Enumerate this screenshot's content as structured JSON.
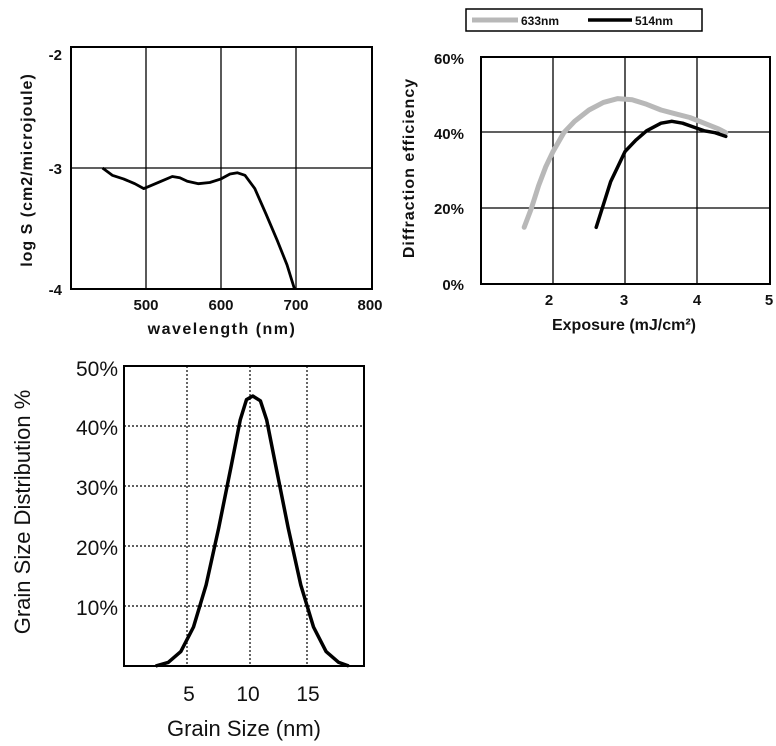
{
  "colors": {
    "series_633": "#b8b8b8",
    "series_514": "#000000",
    "axis": "#000000"
  },
  "chart_data": [
    {
      "type": "line",
      "xlabel": "wavelength (nm)",
      "ylabel": "log S (cm2/microjoule)",
      "xlim": [
        400,
        800
      ],
      "ylim": [
        -4,
        -2
      ],
      "x_ticks": [
        "500",
        "600",
        "700",
        "800"
      ],
      "y_ticks": [
        "-4",
        "-3",
        "-2"
      ],
      "grid": true,
      "series": [
        {
          "points": [
            [
              442,
              -3.0
            ],
            [
              455,
              -3.06
            ],
            [
              470,
              -3.09
            ],
            [
              485,
              -3.13
            ],
            [
              497,
              -3.17
            ],
            [
              505,
              -3.15
            ],
            [
              520,
              -3.11
            ],
            [
              535,
              -3.07
            ],
            [
              545,
              -3.08
            ],
            [
              555,
              -3.11
            ],
            [
              570,
              -3.13
            ],
            [
              585,
              -3.12
            ],
            [
              600,
              -3.09
            ],
            [
              612,
              -3.05
            ],
            [
              622,
              -3.04
            ],
            [
              632,
              -3.06
            ],
            [
              645,
              -3.17
            ],
            [
              660,
              -3.38
            ],
            [
              675,
              -3.6
            ],
            [
              688,
              -3.8
            ],
            [
              698,
              -4.0
            ]
          ]
        }
      ]
    },
    {
      "type": "line",
      "xlabel": "Exposure (mJ/cm²)",
      "ylabel": "Diffraction efficiency",
      "xlim": [
        1,
        5
      ],
      "ylim": [
        0,
        60
      ],
      "x_ticks": [
        "2",
        "3",
        "4",
        "5"
      ],
      "y_ticks": [
        "0%",
        "20%",
        "40%",
        "60%"
      ],
      "grid": true,
      "legend": "top",
      "series": [
        {
          "name": "633nm",
          "color": "#b8b8b8",
          "points": [
            [
              1.6,
              15
            ],
            [
              1.7,
              20
            ],
            [
              1.8,
              26
            ],
            [
              1.9,
              31
            ],
            [
              2.0,
              35
            ],
            [
              2.15,
              40
            ],
            [
              2.3,
              43
            ],
            [
              2.5,
              46
            ],
            [
              2.7,
              48
            ],
            [
              2.9,
              49
            ],
            [
              3.1,
              48.7
            ],
            [
              3.3,
              47.5
            ],
            [
              3.5,
              46
            ],
            [
              3.7,
              45
            ],
            [
              3.9,
              44
            ],
            [
              4.1,
              42.5
            ],
            [
              4.3,
              41
            ],
            [
              4.4,
              40
            ]
          ]
        },
        {
          "name": "514nm",
          "color": "#000000",
          "points": [
            [
              2.6,
              15
            ],
            [
              2.7,
              21
            ],
            [
              2.8,
              27
            ],
            [
              2.9,
              31
            ],
            [
              3.0,
              35
            ],
            [
              3.15,
              38
            ],
            [
              3.3,
              40.5
            ],
            [
              3.5,
              42.5
            ],
            [
              3.65,
              43
            ],
            [
              3.8,
              42.5
            ],
            [
              3.95,
              41.5
            ],
            [
              4.1,
              40.5
            ],
            [
              4.25,
              40
            ],
            [
              4.4,
              39
            ]
          ]
        }
      ]
    },
    {
      "type": "line",
      "xlabel": "Grain Size (nm)",
      "ylabel": "Grain Size Distribution %",
      "xlim": [
        0,
        19
      ],
      "ylim": [
        0,
        50
      ],
      "x_ticks": [
        "5",
        "10",
        "15"
      ],
      "y_ticks": [
        "10%",
        "20%",
        "30%",
        "40%",
        "50%"
      ],
      "grid": true,
      "series": [
        {
          "points": [
            [
              2.5,
              0
            ],
            [
              3.5,
              0.6
            ],
            [
              4.5,
              2.4
            ],
            [
              5.5,
              6.5
            ],
            [
              6.5,
              13.5
            ],
            [
              7.5,
              23
            ],
            [
              8.5,
              33.5
            ],
            [
              9.2,
              41
            ],
            [
              9.7,
              44.4
            ],
            [
              10.2,
              45
            ],
            [
              10.8,
              44.2
            ],
            [
              11.3,
              41
            ],
            [
              12.0,
              33.5
            ],
            [
              13.0,
              23
            ],
            [
              14.0,
              13.5
            ],
            [
              15.0,
              6.5
            ],
            [
              16.0,
              2.4
            ],
            [
              17.0,
              0.6
            ],
            [
              17.8,
              0
            ]
          ]
        }
      ]
    }
  ],
  "legend": {
    "items": [
      "633nm",
      "514nm"
    ]
  }
}
